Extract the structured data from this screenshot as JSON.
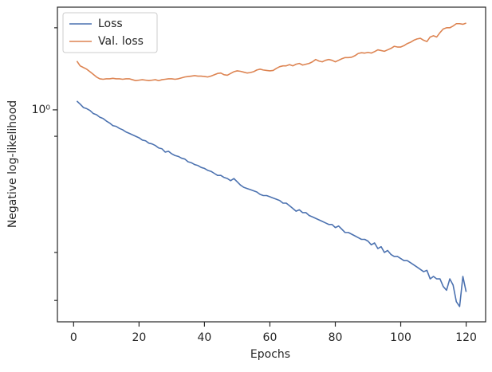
{
  "chart_data": {
    "type": "line",
    "xlabel": "Epochs",
    "ylabel": "Negative log-likelihood",
    "x": [
      1,
      2,
      3,
      4,
      5,
      6,
      7,
      8,
      9,
      10,
      11,
      12,
      13,
      14,
      15,
      16,
      17,
      18,
      19,
      20,
      21,
      22,
      23,
      24,
      25,
      26,
      27,
      28,
      29,
      30,
      31,
      32,
      33,
      34,
      35,
      36,
      37,
      38,
      39,
      40,
      41,
      42,
      43,
      44,
      45,
      46,
      47,
      48,
      49,
      50,
      51,
      52,
      53,
      54,
      55,
      56,
      57,
      58,
      59,
      60,
      61,
      62,
      63,
      64,
      65,
      66,
      67,
      68,
      69,
      70,
      71,
      72,
      73,
      74,
      75,
      76,
      77,
      78,
      79,
      80,
      81,
      82,
      83,
      84,
      85,
      86,
      87,
      88,
      89,
      90,
      91,
      92,
      93,
      94,
      95,
      96,
      97,
      98,
      99,
      100,
      101,
      102,
      103,
      104,
      105,
      106,
      107,
      108,
      109,
      110,
      111,
      112,
      113,
      114,
      115,
      116,
      117,
      118,
      119,
      120
    ],
    "series": [
      {
        "name": "Loss",
        "color": "#4c72b0",
        "values": [
          1.077,
          1.05,
          1.02,
          1.01,
          0.995,
          0.97,
          0.96,
          0.94,
          0.93,
          0.91,
          0.895,
          0.875,
          0.87,
          0.855,
          0.845,
          0.83,
          0.82,
          0.81,
          0.8,
          0.79,
          0.775,
          0.77,
          0.755,
          0.75,
          0.74,
          0.725,
          0.72,
          0.7,
          0.705,
          0.69,
          0.68,
          0.675,
          0.665,
          0.66,
          0.645,
          0.64,
          0.63,
          0.625,
          0.615,
          0.61,
          0.6,
          0.595,
          0.585,
          0.575,
          0.575,
          0.565,
          0.56,
          0.55,
          0.56,
          0.545,
          0.53,
          0.52,
          0.515,
          0.51,
          0.505,
          0.5,
          0.49,
          0.485,
          0.485,
          0.48,
          0.475,
          0.47,
          0.465,
          0.455,
          0.455,
          0.445,
          0.435,
          0.425,
          0.43,
          0.42,
          0.42,
          0.41,
          0.405,
          0.4,
          0.395,
          0.39,
          0.385,
          0.38,
          0.38,
          0.37,
          0.375,
          0.365,
          0.355,
          0.355,
          0.35,
          0.345,
          0.34,
          0.335,
          0.335,
          0.33,
          0.32,
          0.325,
          0.31,
          0.315,
          0.3,
          0.305,
          0.295,
          0.29,
          0.29,
          0.285,
          0.28,
          0.28,
          0.275,
          0.27,
          0.265,
          0.26,
          0.255,
          0.258,
          0.24,
          0.245,
          0.24,
          0.24,
          0.225,
          0.218,
          0.24,
          0.228,
          0.198,
          0.19,
          0.245,
          0.215
        ]
      },
      {
        "name": "Val. loss",
        "color": "#dd8452",
        "values": [
          1.51,
          1.45,
          1.43,
          1.41,
          1.38,
          1.35,
          1.32,
          1.3,
          1.295,
          1.3,
          1.3,
          1.305,
          1.3,
          1.3,
          1.295,
          1.3,
          1.3,
          1.29,
          1.28,
          1.285,
          1.29,
          1.285,
          1.28,
          1.285,
          1.29,
          1.28,
          1.29,
          1.295,
          1.3,
          1.3,
          1.295,
          1.3,
          1.31,
          1.32,
          1.325,
          1.33,
          1.335,
          1.33,
          1.33,
          1.325,
          1.32,
          1.33,
          1.345,
          1.36,
          1.365,
          1.345,
          1.34,
          1.36,
          1.38,
          1.39,
          1.385,
          1.375,
          1.365,
          1.37,
          1.38,
          1.4,
          1.41,
          1.4,
          1.395,
          1.39,
          1.395,
          1.42,
          1.44,
          1.45,
          1.45,
          1.465,
          1.45,
          1.47,
          1.48,
          1.46,
          1.47,
          1.48,
          1.5,
          1.53,
          1.51,
          1.5,
          1.52,
          1.53,
          1.52,
          1.5,
          1.52,
          1.54,
          1.555,
          1.555,
          1.56,
          1.58,
          1.61,
          1.62,
          1.615,
          1.625,
          1.615,
          1.635,
          1.66,
          1.65,
          1.64,
          1.66,
          1.68,
          1.71,
          1.7,
          1.7,
          1.72,
          1.75,
          1.77,
          1.8,
          1.82,
          1.83,
          1.8,
          1.78,
          1.85,
          1.87,
          1.85,
          1.92,
          1.98,
          2.0,
          2.0,
          2.03,
          2.07,
          2.07,
          2.06,
          2.08
        ]
      }
    ],
    "xlim": [
      -4.95,
      125.95
    ],
    "xticks": [
      0,
      20,
      40,
      60,
      80,
      100,
      120
    ],
    "ylim": [
      0.167,
      2.38
    ],
    "ylog": true,
    "yticks": [
      {
        "value": 1,
        "label": "10⁰"
      }
    ],
    "yminorticks": [
      0.2,
      0.3,
      0.8,
      2
    ],
    "grid": false,
    "legend": "upper left"
  }
}
